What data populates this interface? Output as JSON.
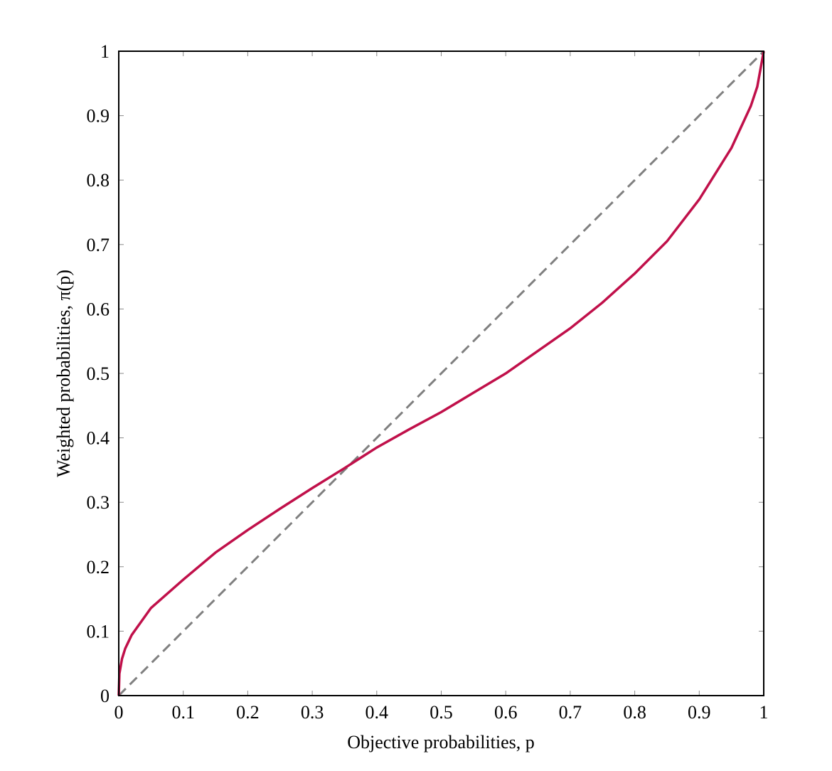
{
  "chart_data": {
    "type": "line",
    "xlabel": "Objective probabilities, p",
    "ylabel": "Weighted probabilities, π(p)",
    "xlim": [
      0,
      1
    ],
    "ylim": [
      0,
      1
    ],
    "xticks": [
      0,
      0.1,
      0.2,
      0.3,
      0.4,
      0.5,
      0.6,
      0.7,
      0.8,
      0.9,
      1
    ],
    "yticks": [
      0,
      0.1,
      0.2,
      0.3,
      0.4,
      0.5,
      0.6,
      0.7,
      0.8,
      0.9,
      1
    ],
    "series": [
      {
        "color": "#c0104a",
        "dashed": false,
        "x": [
          0,
          0.001,
          0.005,
          0.01,
          0.02,
          0.05,
          0.1,
          0.15,
          0.2,
          0.25,
          0.3,
          0.35,
          0.4,
          0.45,
          0.5,
          0.55,
          0.6,
          0.65,
          0.7,
          0.75,
          0.8,
          0.85,
          0.9,
          0.95,
          0.98,
          0.99,
          1
        ],
        "values": [
          0,
          0.034,
          0.057,
          0.073,
          0.094,
          0.136,
          0.18,
          0.222,
          0.257,
          0.29,
          0.322,
          0.353,
          0.385,
          0.413,
          0.44,
          0.47,
          0.5,
          0.535,
          0.57,
          0.61,
          0.655,
          0.705,
          0.77,
          0.85,
          0.915,
          0.945,
          1
        ]
      },
      {
        "color": "#808080",
        "dashed": true,
        "x": [
          0,
          1
        ],
        "values": [
          0,
          1
        ]
      }
    ]
  }
}
